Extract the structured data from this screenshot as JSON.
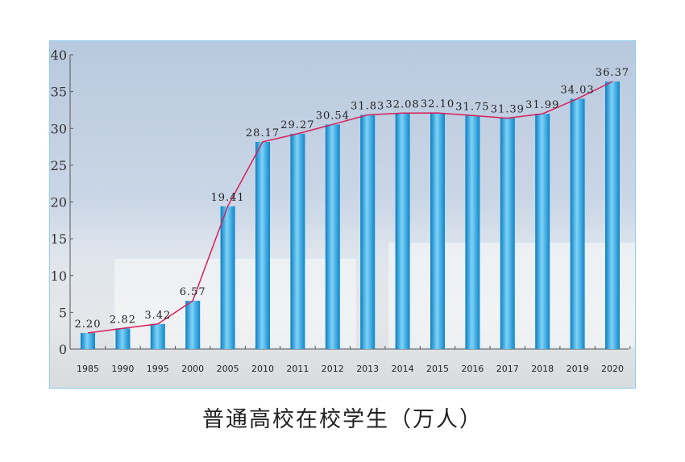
{
  "chart_data": {
    "type": "bar",
    "title": "普通高校在校学生（万人）",
    "categories": [
      "1985",
      "1990",
      "1995",
      "2000",
      "2005",
      "2010",
      "2011",
      "2012",
      "2013",
      "2014",
      "2015",
      "2016",
      "2017",
      "2018",
      "2019",
      "2020"
    ],
    "values": [
      2.2,
      2.82,
      3.42,
      6.57,
      19.41,
      28.17,
      29.27,
      30.54,
      31.83,
      32.08,
      32.1,
      31.75,
      31.39,
      31.99,
      34.03,
      36.37
    ],
    "value_labels": [
      "2.20",
      "2.82",
      "3.42",
      "6.57",
      "19.41",
      "28.17",
      "29.27",
      "30.54",
      "31.83",
      "32.08",
      "32.10",
      "31.75",
      "31.39",
      "31.99",
      "34.03",
      "36.37"
    ],
    "ylim": [
      0,
      40
    ],
    "yticks": [
      0,
      5,
      10,
      15,
      20,
      25,
      30,
      35,
      40
    ],
    "overlay_line": true,
    "grid": false,
    "colors": {
      "bar": "#1a9ad8",
      "line": "#d6205a",
      "frame": "#8fd0ee"
    }
  }
}
